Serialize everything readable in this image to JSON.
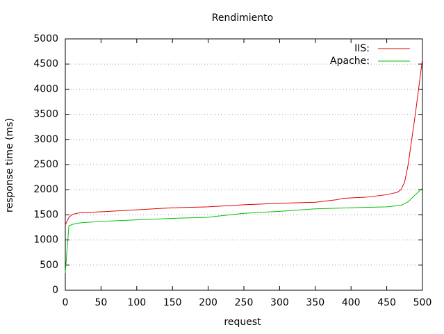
{
  "chart_data": {
    "type": "line",
    "title": "Rendimiento",
    "x_label": "request",
    "y_label": "response time (ms)",
    "xlim": [
      0,
      500
    ],
    "xticks": [
      0,
      50,
      100,
      150,
      200,
      250,
      300,
      350,
      400,
      450,
      500
    ],
    "ylim": [
      0,
      5000
    ],
    "yticks": [
      0,
      500,
      1000,
      1500,
      2000,
      2500,
      3000,
      3500,
      4000,
      4500,
      5000
    ],
    "grid": true,
    "legend": "top-right",
    "series": [
      {
        "name": "IIS:",
        "color": "#e00000",
        "x": [
          0,
          5,
          10,
          20,
          50,
          100,
          150,
          200,
          250,
          300,
          350,
          380,
          390,
          420,
          450,
          465,
          470,
          475,
          480,
          490,
          500
        ],
        "values": [
          1300,
          1450,
          1510,
          1540,
          1560,
          1600,
          1640,
          1660,
          1700,
          1730,
          1750,
          1800,
          1830,
          1850,
          1900,
          1950,
          2000,
          2150,
          2500,
          3500,
          4600
        ]
      },
      {
        "name": "Apache:",
        "color": "#00c000",
        "x": [
          0,
          5,
          10,
          20,
          50,
          100,
          150,
          200,
          210,
          250,
          300,
          350,
          400,
          450,
          470,
          480,
          490,
          500
        ],
        "values": [
          350,
          1280,
          1310,
          1340,
          1370,
          1400,
          1430,
          1450,
          1470,
          1530,
          1570,
          1620,
          1640,
          1660,
          1690,
          1760,
          1900,
          2030
        ]
      }
    ]
  }
}
